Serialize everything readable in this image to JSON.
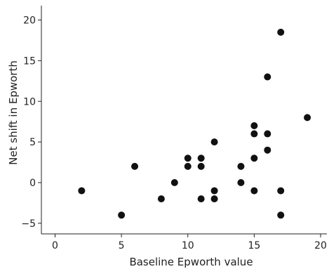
{
  "chart_data": {
    "type": "scatter",
    "title": "",
    "xlabel": "Baseline Epworth value",
    "ylabel": "Net shift in Epworth",
    "xlim": [
      -1,
      21
    ],
    "ylim": [
      -6,
      22
    ],
    "xticks": [
      0,
      5,
      10,
      15,
      20
    ],
    "yticks": [
      -5,
      0,
      5,
      10,
      15,
      20
    ],
    "grid": false,
    "legend": "none",
    "point_color": "#111111",
    "points": [
      {
        "x": 2,
        "y": -1
      },
      {
        "x": 5,
        "y": -4
      },
      {
        "x": 6,
        "y": 2
      },
      {
        "x": 8,
        "y": -2
      },
      {
        "x": 9,
        "y": 0
      },
      {
        "x": 10,
        "y": 3
      },
      {
        "x": 10,
        "y": 2
      },
      {
        "x": 11,
        "y": 3
      },
      {
        "x": 11,
        "y": 2
      },
      {
        "x": 11,
        "y": -2
      },
      {
        "x": 12,
        "y": 5
      },
      {
        "x": 12,
        "y": -1
      },
      {
        "x": 12,
        "y": -2
      },
      {
        "x": 14,
        "y": 2
      },
      {
        "x": 14,
        "y": 0
      },
      {
        "x": 15,
        "y": 7
      },
      {
        "x": 15,
        "y": 6
      },
      {
        "x": 15,
        "y": 3
      },
      {
        "x": 15,
        "y": -1
      },
      {
        "x": 16,
        "y": 13
      },
      {
        "x": 16,
        "y": 6
      },
      {
        "x": 16,
        "y": 4
      },
      {
        "x": 17,
        "y": 18.5
      },
      {
        "x": 17,
        "y": -1
      },
      {
        "x": 17,
        "y": -4
      },
      {
        "x": 19,
        "y": 8
      }
    ]
  }
}
